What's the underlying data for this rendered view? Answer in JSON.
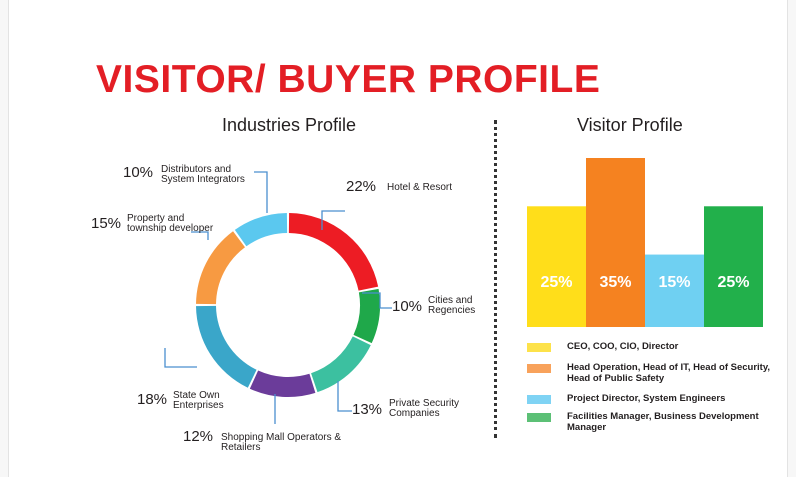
{
  "page": {
    "title": "VISITOR/ BUYER PROFILE",
    "title_color": "#e31e25"
  },
  "chart_data": [
    {
      "type": "pie",
      "title": "Industries Profile",
      "donut": true,
      "slices": [
        {
          "percent_label": "22%",
          "value": 22,
          "name_lines": [
            "Hotel & Resort"
          ],
          "color": "#ed1c24"
        },
        {
          "percent_label": "10%",
          "value": 10,
          "name_lines": [
            "Cities and",
            "Regencies"
          ],
          "color": "#1fa84a"
        },
        {
          "percent_label": "13%",
          "value": 13,
          "name_lines": [
            "Private Security",
            "Companies"
          ],
          "color": "#3cc0a0"
        },
        {
          "percent_label": "12%",
          "value": 12,
          "name_lines": [
            "Shopping Mall Operators &",
            "Retailers"
          ],
          "color": "#6b3c9a"
        },
        {
          "percent_label": "18%",
          "value": 18,
          "name_lines": [
            "State Own",
            "Enterprises"
          ],
          "color": "#3aa6c9"
        },
        {
          "percent_label": "15%",
          "value": 15,
          "name_lines": [
            "Property and",
            "township developer"
          ],
          "color": "#f79a42"
        },
        {
          "percent_label": "10%",
          "value": 10,
          "name_lines": [
            "Distributors and",
            "System Integrators"
          ],
          "color": "#5bc8ef"
        }
      ],
      "leader_color": "#4a8fcf"
    },
    {
      "type": "bar",
      "title": "Visitor Profile",
      "categories": [
        "CEO, COO, CIO, Director",
        "Head Operation, Head of IT, Head of Security, Head of Public Safety",
        "Project Director, System Engineers",
        "Facilities Manager, Business Development Manager"
      ],
      "values": [
        25,
        35,
        15,
        25
      ],
      "value_labels": [
        "25%",
        "35%",
        "15%",
        "25%"
      ],
      "bar_colors": [
        "#ffde1a",
        "#f58220",
        "#6fd0f2",
        "#22b04b"
      ],
      "legend": [
        {
          "label": "CEO, COO, CIO, Director",
          "color": "#fde24a"
        },
        {
          "label": "Head Operation, Head of IT, Head of Security, Head of Public Safety",
          "color": "#f8a25b"
        },
        {
          "label": "Project Director, System Engineers",
          "color": "#7fd3f4"
        },
        {
          "label": "Facilities Manager, Business Development Manager",
          "color": "#5cc076"
        }
      ]
    }
  ]
}
